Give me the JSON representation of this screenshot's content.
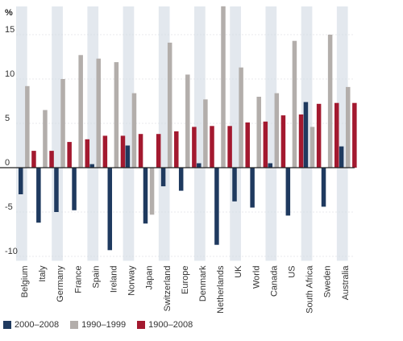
{
  "chart_data": {
    "type": "bar",
    "unit_label": "%",
    "categories": [
      "Belgium",
      "Italy",
      "Germany",
      "France",
      "Spain",
      "Ireland",
      "Norway",
      "Japan",
      "Switzerland",
      "Europe",
      "Denmark",
      "Netherlands",
      "UK",
      "World",
      "Canada",
      "US",
      "South Africa",
      "Sweden",
      "Australia"
    ],
    "series": [
      {
        "name": "2000–2008",
        "color": "#1f3a5f",
        "values": [
          -3.0,
          -6.2,
          -5.0,
          -4.8,
          0.4,
          -9.3,
          2.5,
          -6.3,
          -2.1,
          -2.6,
          0.5,
          -8.7,
          -3.8,
          -4.5,
          0.5,
          -5.4,
          7.4,
          -4.4,
          2.4
        ]
      },
      {
        "name": "1990–1999",
        "color": "#b3aeab",
        "values": [
          9.2,
          6.5,
          10.0,
          12.7,
          12.3,
          11.9,
          8.4,
          -5.3,
          14.1,
          10.5,
          7.7,
          18.2,
          11.3,
          8.0,
          8.4,
          14.3,
          4.6,
          15.0,
          9.1
        ]
      },
      {
        "name": "1900–2008",
        "color": "#a3192f",
        "values": [
          1.9,
          1.9,
          2.9,
          3.2,
          3.6,
          3.6,
          3.8,
          3.8,
          4.1,
          4.6,
          4.7,
          4.7,
          5.1,
          5.2,
          5.9,
          6.0,
          7.2,
          7.3,
          7.3
        ]
      }
    ],
    "yticks": [
      "-10",
      "-5",
      "0",
      "5",
      "10",
      "15"
    ],
    "ylim": [
      -10.5,
      18.3
    ],
    "background_bands": "alternating light blue-grey columns",
    "legend_position": "bottom-left"
  }
}
